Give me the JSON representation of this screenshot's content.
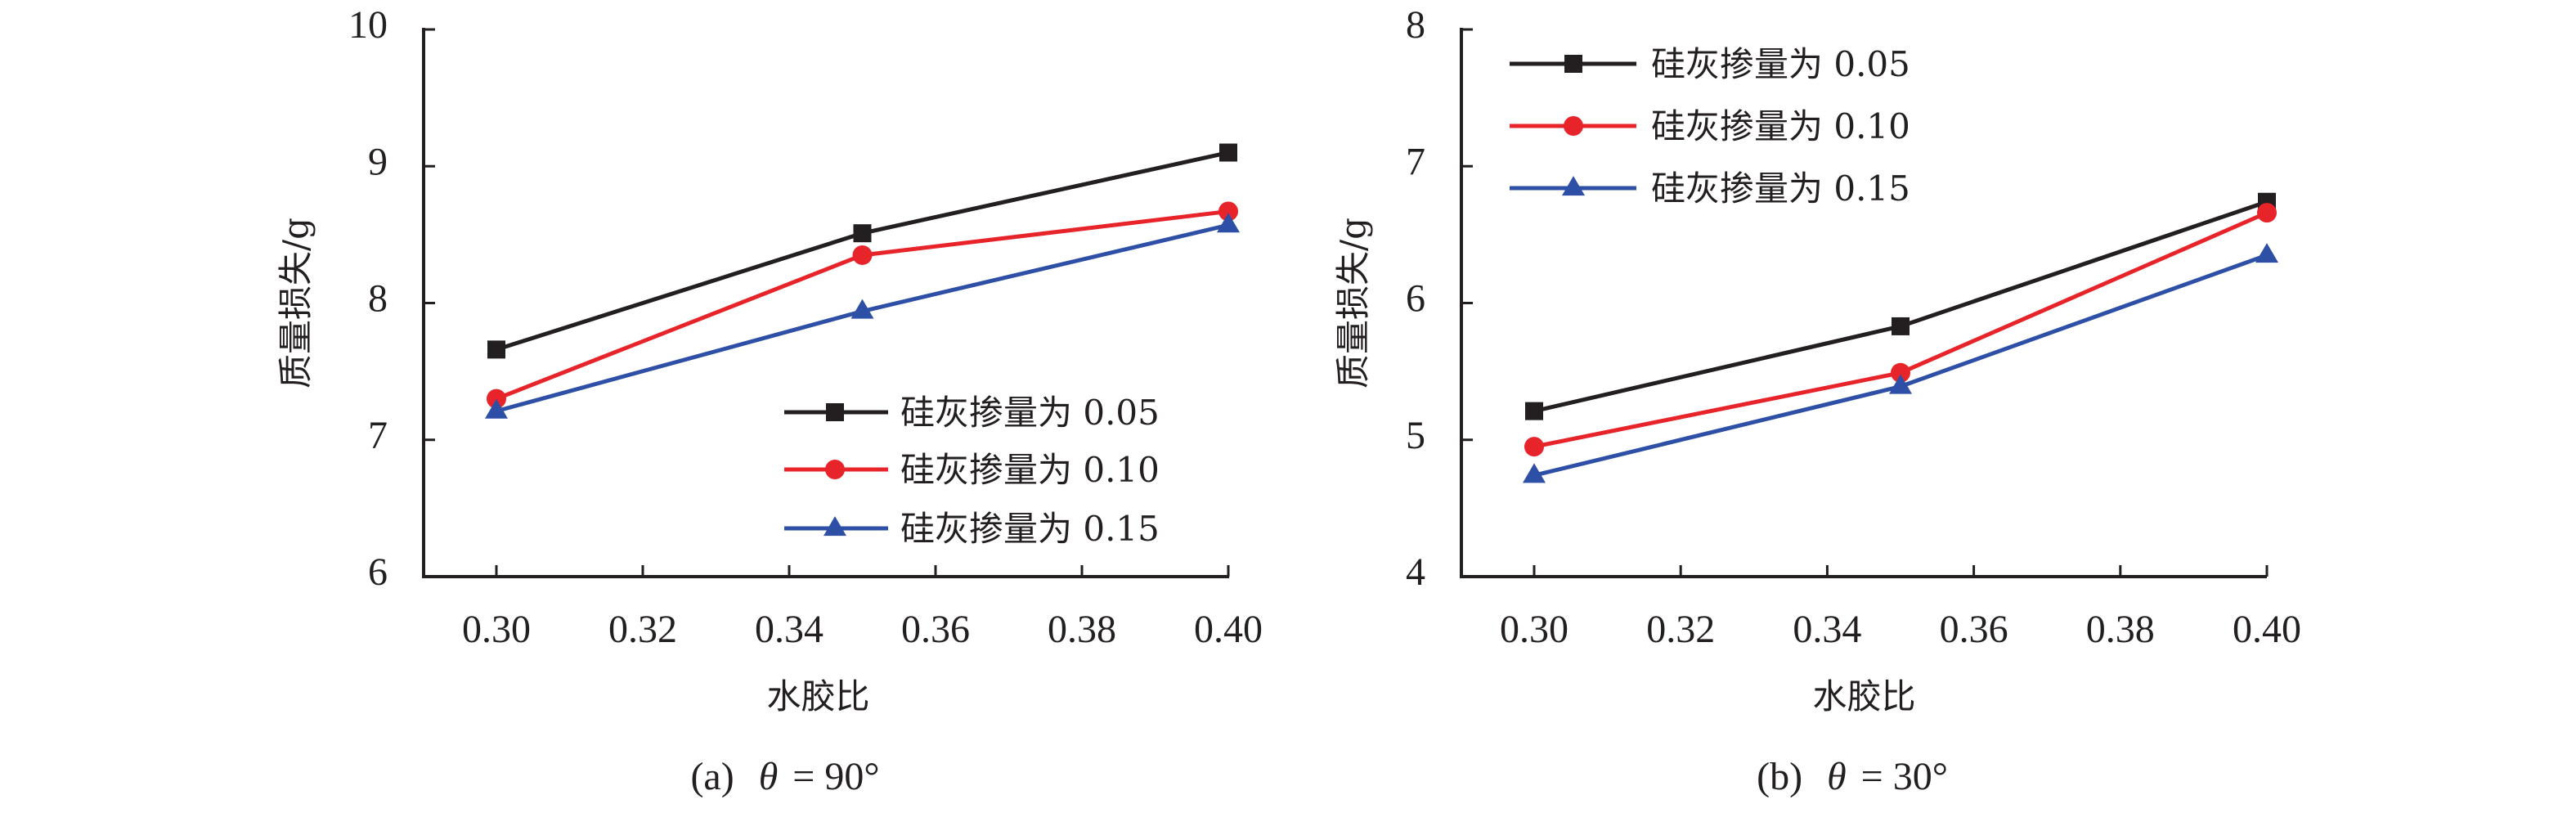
{
  "colors": {
    "series_1": "#231f20",
    "series_2": "#e8242b",
    "series_3": "#2e4fa6",
    "axis": "#231f20"
  },
  "chart_data": [
    {
      "type": "line",
      "caption_prefix": "(a)",
      "caption_symbol": "θ",
      "caption_value": "= 90°",
      "xlabel": "水胶比",
      "ylabel": "质量损失/g",
      "xlim": [
        0.29,
        0.4
      ],
      "ylim": [
        6,
        10
      ],
      "x_ticks": [
        "0.30",
        "0.32",
        "0.34",
        "0.36",
        "0.38",
        "0.40"
      ],
      "x_tick_values": [
        0.3,
        0.32,
        0.34,
        0.36,
        0.38,
        0.4
      ],
      "y_ticks": [
        "6",
        "7",
        "8",
        "9",
        "10"
      ],
      "y_tick_values": [
        6,
        7,
        8,
        9,
        10
      ],
      "legend_position": "bottom-right",
      "grid": false,
      "x": [
        0.3,
        0.35,
        0.4
      ],
      "series": [
        {
          "name": "硅灰掺量为 0.05",
          "marker": "square",
          "values": [
            7.66,
            8.51,
            9.1
          ]
        },
        {
          "name": "硅灰掺量为 0.10",
          "marker": "circle",
          "values": [
            7.3,
            8.35,
            8.67
          ]
        },
        {
          "name": "硅灰掺量为 0.15",
          "marker": "triangle",
          "values": [
            7.21,
            7.94,
            8.57
          ]
        }
      ]
    },
    {
      "type": "line",
      "caption_prefix": "(b)",
      "caption_symbol": "θ",
      "caption_value": "= 30°",
      "xlabel": "水胶比",
      "ylabel": "质量损失/g",
      "xlim": [
        0.29,
        0.4
      ],
      "ylim": [
        4,
        8
      ],
      "x_ticks": [
        "0.30",
        "0.32",
        "0.34",
        "0.36",
        "0.38",
        "0.40"
      ],
      "x_tick_values": [
        0.3,
        0.32,
        0.34,
        0.36,
        0.38,
        0.4
      ],
      "y_ticks": [
        "4",
        "5",
        "6",
        "7",
        "8"
      ],
      "y_tick_values": [
        4,
        5,
        6,
        7,
        8
      ],
      "legend_position": "top-left",
      "grid": false,
      "x": [
        0.3,
        0.35,
        0.4
      ],
      "series": [
        {
          "name": "硅灰掺量为 0.05",
          "marker": "square",
          "values": [
            5.21,
            5.83,
            6.74
          ]
        },
        {
          "name": "硅灰掺量为 0.10",
          "marker": "circle",
          "values": [
            4.95,
            5.49,
            6.66
          ]
        },
        {
          "name": "硅灰掺量为 0.15",
          "marker": "triangle",
          "values": [
            4.74,
            5.39,
            6.35
          ]
        }
      ]
    }
  ]
}
